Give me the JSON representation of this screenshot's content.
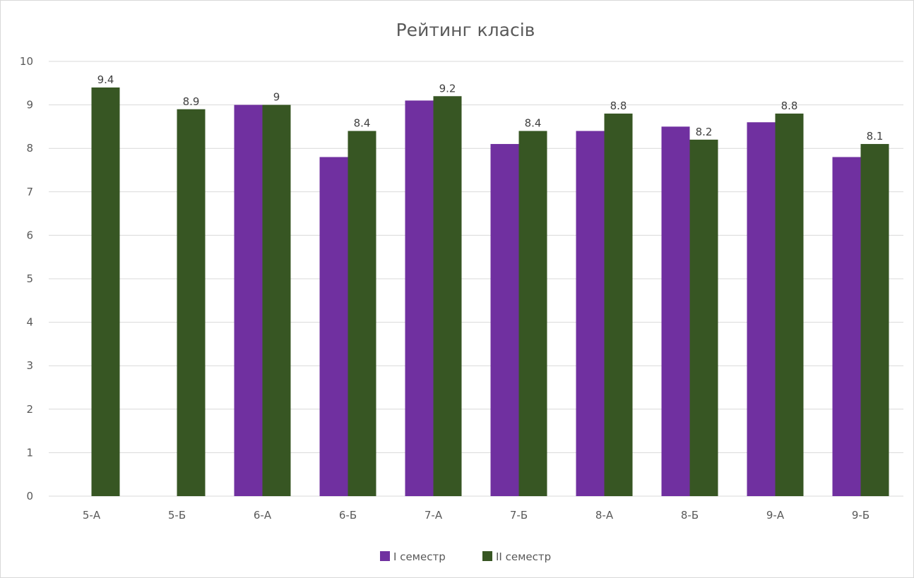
{
  "chart_data": {
    "type": "bar",
    "title": "Рейтинг класів",
    "xlabel": "",
    "ylabel": "",
    "categories": [
      "5-А",
      "5-Б",
      "6-А",
      "6-Б",
      "7-А",
      "7-Б",
      "8-А",
      "8-Б",
      "9-А",
      "9-Б"
    ],
    "series": [
      {
        "name": "I семестр",
        "color": "#7030a0",
        "values": [
          null,
          null,
          9,
          7.8,
          9.1,
          8.1,
          8.4,
          8.5,
          8.6,
          7.8
        ],
        "data_labels": false
      },
      {
        "name": "II семестр",
        "color": "#375623",
        "values": [
          9.4,
          8.9,
          9,
          8.4,
          9.2,
          8.4,
          8.8,
          8.2,
          8.8,
          8.1
        ],
        "data_labels": true
      }
    ],
    "ylim": [
      0,
      10
    ],
    "yticks": [
      0,
      1,
      2,
      3,
      4,
      5,
      6,
      7,
      8,
      9,
      10
    ],
    "grid": true,
    "legend": "bottom"
  }
}
